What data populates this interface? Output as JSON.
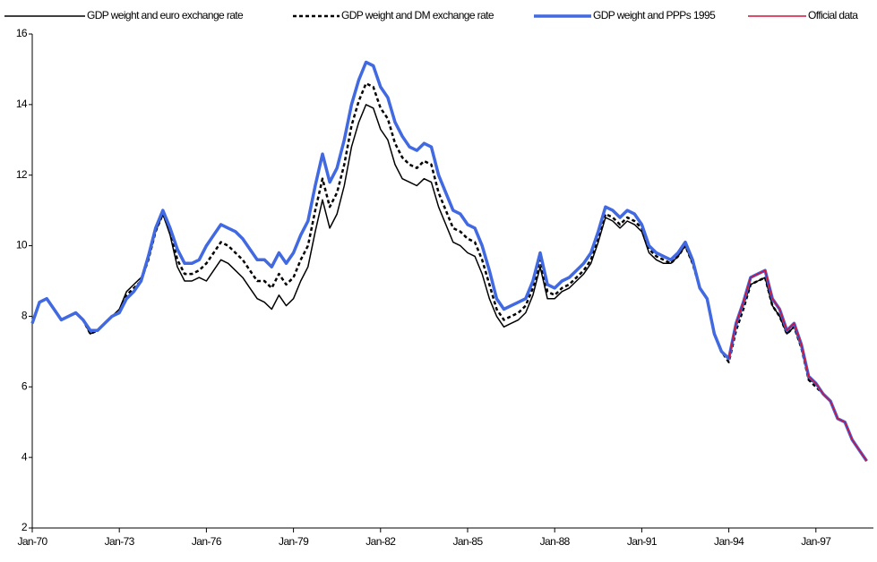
{
  "chart_data": {
    "type": "line",
    "categories": [
      "Jan-70",
      null,
      null,
      null,
      null,
      null,
      null,
      null,
      null,
      null,
      null,
      null,
      "Jan-73",
      null,
      null,
      null,
      null,
      null,
      null,
      null,
      null,
      null,
      null,
      null,
      "Jan-76",
      null,
      null,
      null,
      null,
      null,
      null,
      null,
      null,
      null,
      null,
      null,
      "Jan-79",
      null,
      null,
      null,
      null,
      null,
      null,
      null,
      null,
      null,
      null,
      null,
      "Jan-82",
      null,
      null,
      null,
      null,
      null,
      null,
      null,
      null,
      null,
      null,
      null,
      "Jan-85",
      null,
      null,
      null,
      null,
      null,
      null,
      null,
      null,
      null,
      null,
      null,
      "Jan-88",
      null,
      null,
      null,
      null,
      null,
      null,
      null,
      null,
      null,
      null,
      null,
      "Jan-91",
      null,
      null,
      null,
      null,
      null,
      null,
      null,
      null,
      null,
      null,
      null,
      "Jan-94",
      null,
      null,
      null,
      null,
      null,
      null,
      null,
      null,
      null,
      null,
      null,
      "Jan-97",
      null,
      null,
      null,
      null,
      null,
      null,
      null
    ],
    "ylim": [
      2,
      16
    ],
    "yticks": [
      2,
      4,
      6,
      8,
      10,
      12,
      14,
      16
    ],
    "grid": false,
    "legend": "top",
    "series": [
      {
        "name": "GDP weight and euro exchange rate",
        "color": "#000000",
        "line_style": "solid",
        "width": 1.5,
        "values": [
          7.8,
          8.4,
          8.5,
          8.2,
          7.9,
          8.0,
          8.1,
          7.9,
          7.5,
          7.6,
          7.8,
          8.0,
          8.2,
          8.7,
          8.9,
          9.1,
          9.6,
          10.4,
          10.9,
          10.3,
          9.4,
          9.0,
          9.0,
          9.1,
          9.0,
          9.3,
          9.6,
          9.5,
          9.3,
          9.1,
          8.8,
          8.5,
          8.4,
          8.2,
          8.6,
          8.3,
          8.5,
          9.0,
          9.4,
          10.4,
          11.3,
          10.5,
          10.9,
          11.7,
          12.8,
          13.5,
          14.0,
          13.9,
          13.3,
          13.0,
          12.3,
          11.9,
          11.8,
          11.7,
          11.9,
          11.8,
          11.1,
          10.6,
          10.1,
          10.0,
          9.8,
          9.7,
          9.2,
          8.5,
          8.0,
          7.7,
          7.8,
          7.9,
          8.1,
          8.6,
          9.4,
          8.5,
          8.5,
          8.7,
          8.8,
          9.0,
          9.2,
          9.5,
          10.1,
          10.8,
          10.7,
          10.5,
          10.7,
          10.6,
          10.4,
          9.8,
          9.6,
          9.5,
          9.5,
          9.7,
          10.0,
          9.5,
          8.8,
          8.5,
          7.5,
          7.0,
          6.8,
          7.7,
          8.3,
          8.9,
          9.0,
          9.1,
          8.3,
          8.0,
          7.5,
          7.7,
          7.1,
          6.2,
          6.1,
          5.8,
          5.6,
          5.1,
          5.0,
          4.5,
          4.2,
          3.9
        ]
      },
      {
        "name": "GDP weight and DM exchange rate",
        "color": "#000000",
        "line_style": "dashed",
        "width": 2.5,
        "values": [
          7.8,
          8.4,
          8.5,
          8.2,
          7.9,
          8.0,
          8.1,
          7.9,
          7.5,
          7.6,
          7.8,
          8.0,
          8.1,
          8.6,
          8.8,
          9.0,
          9.6,
          10.4,
          10.9,
          10.4,
          9.6,
          9.2,
          9.2,
          9.3,
          9.5,
          9.8,
          10.1,
          10.0,
          9.8,
          9.6,
          9.3,
          9.0,
          9.0,
          8.8,
          9.2,
          8.9,
          9.1,
          9.6,
          10.0,
          11.0,
          11.9,
          11.1,
          11.5,
          12.3,
          13.4,
          14.1,
          14.6,
          14.5,
          13.9,
          13.6,
          12.9,
          12.5,
          12.3,
          12.2,
          12.4,
          12.3,
          11.5,
          11.0,
          10.5,
          10.4,
          10.2,
          10.1,
          9.6,
          8.9,
          8.2,
          7.9,
          8.0,
          8.1,
          8.3,
          8.8,
          9.6,
          8.7,
          8.6,
          8.8,
          8.9,
          9.1,
          9.3,
          9.6,
          10.2,
          10.9,
          10.8,
          10.6,
          10.8,
          10.7,
          10.5,
          9.9,
          9.7,
          9.6,
          9.5,
          9.7,
          10.0,
          9.5,
          8.8,
          8.5,
          7.5,
          7.0,
          6.7,
          7.6,
          8.2,
          8.9,
          9.0,
          9.1,
          8.3,
          8.0,
          7.5,
          7.7,
          7.1,
          6.2,
          6.0,
          5.8,
          5.6,
          5.1,
          5.0,
          4.5,
          4.2,
          3.9
        ]
      },
      {
        "name": "GDP weight and PPPs 1995",
        "color": "#4169e1",
        "line_style": "solid",
        "width": 3.5,
        "values": [
          7.8,
          8.4,
          8.5,
          8.2,
          7.9,
          8.0,
          8.1,
          7.9,
          7.6,
          7.6,
          7.8,
          8.0,
          8.1,
          8.5,
          8.7,
          9.0,
          9.7,
          10.5,
          11.0,
          10.5,
          9.9,
          9.5,
          9.5,
          9.6,
          10.0,
          10.3,
          10.6,
          10.5,
          10.4,
          10.2,
          9.9,
          9.6,
          9.6,
          9.4,
          9.8,
          9.5,
          9.8,
          10.3,
          10.7,
          11.7,
          12.6,
          11.8,
          12.2,
          13.0,
          14.0,
          14.7,
          15.2,
          15.1,
          14.5,
          14.2,
          13.5,
          13.1,
          12.8,
          12.7,
          12.9,
          12.8,
          12.0,
          11.5,
          11.0,
          10.9,
          10.6,
          10.5,
          10.0,
          9.3,
          8.5,
          8.2,
          8.3,
          8.4,
          8.5,
          9.0,
          9.8,
          8.9,
          8.8,
          9.0,
          9.1,
          9.3,
          9.5,
          9.8,
          10.4,
          11.1,
          11.0,
          10.8,
          11.0,
          10.9,
          10.6,
          10.0,
          9.8,
          9.7,
          9.6,
          9.8,
          10.1,
          9.6,
          8.8,
          8.5,
          7.5,
          7.0,
          6.8,
          7.8,
          8.4,
          9.1,
          9.2,
          9.3,
          8.5,
          8.2,
          7.6,
          7.8,
          7.2,
          6.3,
          6.1,
          5.8,
          5.6,
          5.1,
          5.0,
          4.5,
          4.2,
          3.9
        ]
      },
      {
        "name": "Official data",
        "color": "#d0103a",
        "line_style": "solid",
        "width": 1.5,
        "values": [
          null,
          null,
          null,
          null,
          null,
          null,
          null,
          null,
          null,
          null,
          null,
          null,
          null,
          null,
          null,
          null,
          null,
          null,
          null,
          null,
          null,
          null,
          null,
          null,
          null,
          null,
          null,
          null,
          null,
          null,
          null,
          null,
          null,
          null,
          null,
          null,
          null,
          null,
          null,
          null,
          null,
          null,
          null,
          null,
          null,
          null,
          null,
          null,
          null,
          null,
          null,
          null,
          null,
          null,
          null,
          null,
          null,
          null,
          null,
          null,
          null,
          null,
          null,
          null,
          null,
          null,
          null,
          null,
          null,
          null,
          null,
          null,
          null,
          null,
          null,
          null,
          null,
          null,
          null,
          null,
          null,
          null,
          null,
          null,
          null,
          null,
          null,
          null,
          null,
          null,
          null,
          null,
          null,
          null,
          null,
          null,
          6.8,
          7.8,
          8.4,
          9.1,
          9.2,
          9.3,
          8.5,
          8.2,
          7.6,
          7.8,
          7.2,
          6.3,
          6.1,
          5.8,
          5.6,
          5.1,
          5.0,
          4.5,
          4.2,
          3.9
        ]
      }
    ]
  }
}
